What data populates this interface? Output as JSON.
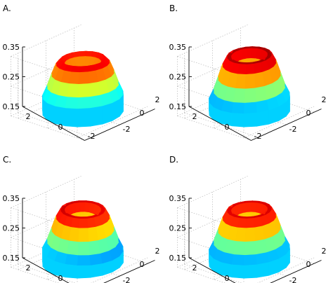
{
  "chart_data": [
    {
      "panel_label": "A.",
      "type": "surface",
      "z_ticks": [
        "0.35",
        "0.25",
        "0.15"
      ],
      "x_ticks": [
        "2",
        "0",
        "-2"
      ],
      "y_ticks": [
        "2",
        "0",
        "-2"
      ],
      "zlim": [
        0.15,
        0.35
      ],
      "xlim": [
        -2.5,
        2.5
      ],
      "ylim": [
        -2.5,
        2.5
      ],
      "ring_radius": 1.1,
      "peak_z": 0.33,
      "tilt_x": 0.25,
      "tilt_y": 0.2,
      "colormap": "jet",
      "grid": true
    },
    {
      "panel_label": "B.",
      "type": "surface",
      "z_ticks": [
        "0.35",
        "0.25",
        "0.15"
      ],
      "x_ticks": [
        "2",
        "0",
        "-2"
      ],
      "y_ticks": [
        "2",
        "0",
        "-2"
      ],
      "zlim": [
        0.15,
        0.35
      ],
      "xlim": [
        -2.5,
        2.5
      ],
      "ylim": [
        -2.5,
        2.5
      ],
      "ring_radius": 1.0,
      "peak_z": 0.345,
      "tilt_x": 0.1,
      "tilt_y": -0.1,
      "colormap": "jet",
      "grid": true
    },
    {
      "panel_label": "C.",
      "type": "surface",
      "z_ticks": [
        "0.35",
        "0.25",
        "0.15"
      ],
      "x_ticks": [
        "2",
        "0",
        "-2"
      ],
      "y_ticks": [
        "2",
        "0",
        "-2"
      ],
      "zlim": [
        0.15,
        0.35
      ],
      "xlim": [
        -2.5,
        2.5
      ],
      "ylim": [
        -2.5,
        2.5
      ],
      "ring_radius": 1.0,
      "peak_z": 0.335,
      "tilt_x": -0.2,
      "tilt_y": 0.1,
      "colormap": "jet",
      "grid": true
    },
    {
      "panel_label": "D.",
      "type": "surface",
      "z_ticks": [
        "0.35",
        "0.25",
        "0.15"
      ],
      "x_ticks": [
        "2",
        "0",
        "-2"
      ],
      "y_ticks": [
        "2",
        "0",
        "-2"
      ],
      "zlim": [
        0.15,
        0.35
      ],
      "xlim": [
        -2.5,
        2.5
      ],
      "ylim": [
        -2.5,
        2.5
      ],
      "ring_radius": 1.0,
      "peak_z": 0.335,
      "tilt_x": 0.05,
      "tilt_y": -0.05,
      "colormap": "jet",
      "grid": true
    }
  ]
}
